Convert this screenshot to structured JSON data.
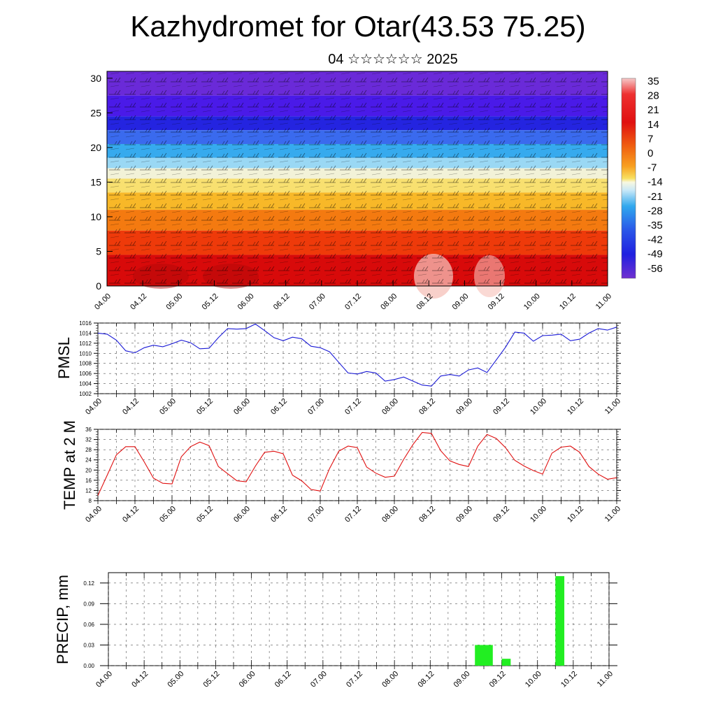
{
  "title": "Kazhydromet for Otar(43.53 75.25)",
  "subtitle": "04 ☆☆☆☆☆☆ 2025",
  "x_tick_labels": [
    "04.00",
    "04.12",
    "05.00",
    "05.12",
    "06.00",
    "06.12",
    "07.00",
    "07.12",
    "08.00",
    "08.12",
    "09.00",
    "09.12",
    "10.00",
    "10.12",
    "11.00"
  ],
  "colors": {
    "pmsl_line": "#1a1ad6",
    "temp_line": "#e01010",
    "precip_bar": "#22ee22"
  },
  "chart_data": [
    {
      "type": "heatmap",
      "name": "cross-section",
      "y_ticks": [
        "0",
        "5",
        "10",
        "15",
        "20",
        "25",
        "30"
      ],
      "ylim": [
        0,
        31
      ],
      "colorbar_labels": [
        "35",
        "28",
        "21",
        "14",
        "7",
        "0",
        "-7",
        "-14",
        "-21",
        "-28",
        "-35",
        "-42",
        "-49",
        "-56"
      ],
      "bands": [
        {
          "top": 31,
          "color": "#6a2ad8"
        },
        {
          "top": 27.5,
          "color": "#4a1ae8"
        },
        {
          "top": 24.5,
          "color": "#2424e0"
        },
        {
          "top": 22.5,
          "color": "#3a6aee"
        },
        {
          "top": 20.5,
          "color": "#36aaee"
        },
        {
          "top": 18.5,
          "color": "#9ad8f4"
        },
        {
          "top": 17,
          "color": "#f2f2d8"
        },
        {
          "top": 15.5,
          "color": "#f8e070"
        },
        {
          "top": 13.5,
          "color": "#f8b828"
        },
        {
          "top": 11,
          "color": "#f47a10"
        },
        {
          "top": 8,
          "color": "#ee3a0a"
        },
        {
          "top": 4.5,
          "color": "#d80a0a"
        }
      ]
    },
    {
      "type": "line",
      "name": "PMSL",
      "ylabel": "PMSL",
      "y_ticks": [
        "1002",
        "1004",
        "1006",
        "1008",
        "1010",
        "1012",
        "1014",
        "1016"
      ],
      "ylim": [
        1002,
        1016
      ],
      "x_hours": [
        0,
        3,
        6,
        9,
        12,
        15,
        18,
        21,
        24,
        27,
        30,
        33,
        36,
        39,
        42,
        45,
        48,
        51,
        54,
        57,
        60,
        63,
        66,
        69,
        72,
        75,
        78,
        81,
        84,
        87,
        90,
        93,
        96,
        99,
        102,
        105,
        108,
        111,
        114,
        117,
        120,
        123,
        126,
        129,
        132,
        135,
        138,
        141,
        144,
        147,
        150,
        153,
        156,
        159,
        162,
        165,
        168
      ],
      "values": [
        1014.0,
        1013.8,
        1012.6,
        1010.5,
        1010.1,
        1011.1,
        1011.6,
        1011.3,
        1011.9,
        1012.6,
        1012.1,
        1010.9,
        1011.0,
        1013.1,
        1014.9,
        1014.8,
        1014.9,
        1015.8,
        1014.5,
        1013.1,
        1012.5,
        1013.2,
        1012.9,
        1011.4,
        1011.1,
        1010.3,
        1008.2,
        1006.1,
        1005.9,
        1006.4,
        1006.1,
        1004.5,
        1004.8,
        1005.3,
        1004.5,
        1003.7,
        1003.5,
        1005.5,
        1005.8,
        1005.5,
        1006.7,
        1007.1,
        1006.2,
        1008.7,
        1011.2,
        1014.2,
        1014.0,
        1012.4,
        1013.5,
        1013.6,
        1013.8,
        1012.5,
        1012.8,
        1014.0,
        1014.9,
        1014.6,
        1015.2
      ]
    },
    {
      "type": "line",
      "name": "TEMP at 2 M",
      "ylabel": "TEMP at 2 M",
      "y_ticks": [
        "8",
        "12",
        "16",
        "20",
        "24",
        "28",
        "32",
        "36"
      ],
      "ylim": [
        8,
        36
      ],
      "x_hours": [
        0,
        3,
        6,
        9,
        12,
        15,
        18,
        21,
        24,
        27,
        30,
        33,
        36,
        39,
        42,
        45,
        48,
        51,
        54,
        57,
        60,
        63,
        66,
        69,
        72,
        75,
        78,
        81,
        84,
        87,
        90,
        93,
        96,
        99,
        102,
        105,
        108,
        111,
        114,
        117,
        120,
        123,
        126,
        129,
        132,
        135,
        138,
        141,
        144,
        147,
        150,
        153,
        156,
        159,
        162,
        165,
        168
      ],
      "values": [
        10.0,
        18.0,
        26.0,
        29.2,
        29.2,
        23.2,
        16.8,
        14.8,
        14.6,
        25.2,
        29.2,
        31.0,
        29.6,
        21.4,
        18.6,
        15.8,
        15.4,
        21.6,
        27.0,
        27.4,
        26.4,
        18.0,
        15.8,
        12.4,
        11.8,
        20.6,
        27.4,
        29.4,
        28.8,
        21.2,
        18.8,
        17.2,
        17.6,
        24.2,
        30.0,
        34.8,
        34.4,
        27.6,
        23.6,
        22.2,
        21.4,
        29.4,
        34.0,
        32.4,
        28.8,
        23.8,
        21.6,
        19.8,
        18.4,
        26.6,
        29.0,
        29.4,
        27.0,
        21.4,
        18.4,
        16.4,
        17.0
      ]
    },
    {
      "type": "bar",
      "name": "PRECIP",
      "ylabel": "PRECIP, mm",
      "y_ticks": [
        "0.00",
        "0.03",
        "0.06",
        "0.09",
        "0.12"
      ],
      "ylim": [
        0,
        0.135
      ],
      "bars": [
        {
          "start_hour": 123,
          "end_hour": 129,
          "value": 0.03
        },
        {
          "start_hour": 132,
          "end_hour": 135,
          "value": 0.01
        },
        {
          "start_hour": 150,
          "end_hour": 153,
          "value": 0.13
        }
      ]
    }
  ]
}
